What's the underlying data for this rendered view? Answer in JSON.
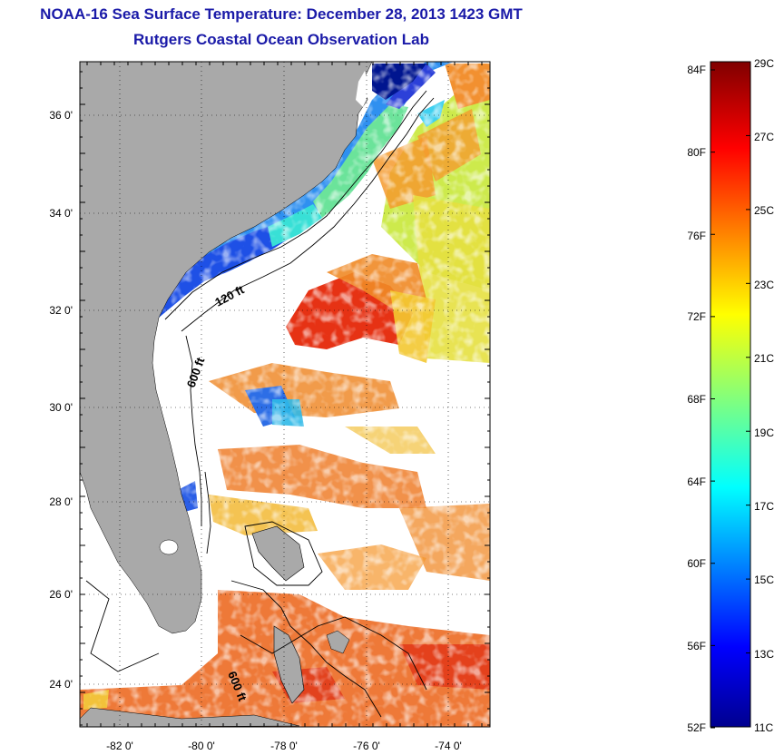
{
  "title": {
    "line1": "NOAA-16 Sea Surface Temperature:  December 28, 2013 1423 GMT",
    "line2": "Rutgers Coastal Ocean Observation Lab"
  },
  "map": {
    "lat_labels": [
      "36 0'",
      "34 0'",
      "32 0'",
      "30 0'",
      "28 0'",
      "26 0'",
      "24 0'"
    ],
    "lon_labels": [
      "-82 0'",
      "-80 0'",
      "-78 0'",
      "-76 0'",
      "-74 0'"
    ],
    "contours": [
      "120 ft",
      "600 ft",
      "600 ft"
    ],
    "colors": {
      "land": "#a9a9a9",
      "cloud": "#ffffff",
      "frame": "#000000"
    }
  },
  "colorbar": {
    "fahrenheit_labels": [
      "84F",
      "80F",
      "76F",
      "72F",
      "68F",
      "64F",
      "60F",
      "56F",
      "52F"
    ],
    "celsius_labels": [
      "29C",
      "27C",
      "25C",
      "23C",
      "21C",
      "19C",
      "17C",
      "15C",
      "13C",
      "11C"
    ],
    "range_celsius": [
      11,
      29
    ],
    "colormap": "jet"
  }
}
